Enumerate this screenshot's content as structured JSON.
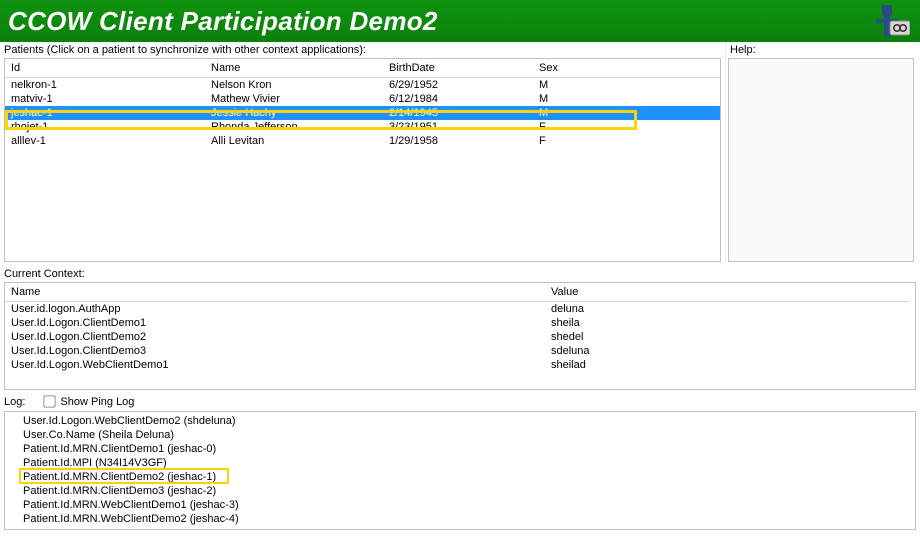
{
  "title": "CCOW Client Participation Demo2",
  "colors": {
    "header_bg": "#0d8a0d",
    "selection_bg": "#1e90ff",
    "highlight_border": "#ffd400"
  },
  "patients": {
    "label": "Patients (Click on a patient to synchronize with other context applications):",
    "columns": [
      "Id",
      "Name",
      "BirthDate",
      "Sex"
    ],
    "rows": [
      {
        "id": "nelkron-1",
        "name": "Nelson Kron",
        "birth": "6/29/1952",
        "sex": "M",
        "selected": false
      },
      {
        "id": "matviv-1",
        "name": "Mathew Vivier",
        "birth": "6/12/1984",
        "sex": "M",
        "selected": false
      },
      {
        "id": "jeshac-1",
        "name": "Jessie Hachy",
        "birth": "2/14/1945",
        "sex": "M",
        "selected": true
      },
      {
        "id": "rhojet-1",
        "name": "Rhonda Jefferson",
        "birth": "3/23/1951",
        "sex": "F",
        "selected": false
      },
      {
        "id": "alllev-1",
        "name": "Alli Levitan",
        "birth": "1/29/1958",
        "sex": "F",
        "selected": false
      }
    ]
  },
  "help": {
    "label": "Help:"
  },
  "context": {
    "label": "Current Context:",
    "columns": [
      "Name",
      "Value"
    ],
    "rows": [
      {
        "name": "User.id.logon.AuthApp",
        "value": "deluna"
      },
      {
        "name": "User.Id.Logon.ClientDemo1",
        "value": "sheila"
      },
      {
        "name": "User.Id.Logon.ClientDemo2",
        "value": "shedel"
      },
      {
        "name": "User.Id.Logon.ClientDemo3",
        "value": "sdeluna"
      },
      {
        "name": "User.Id.Logon.WebClientDemo1",
        "value": "sheilad"
      }
    ]
  },
  "log": {
    "label": "Log:",
    "show_ping_label": "Show Ping Log",
    "show_ping_checked": false,
    "lines": [
      "User.Id.Logon.WebClientDemo2 (shdeluna)",
      "User.Co.Name (Sheila Deluna)",
      "Patient.Id.MRN.ClientDemo1 (jeshac-0)",
      "Patient.Id.MPI (N34I14V3GF)",
      "Patient.Id.MRN.ClientDemo2 (jeshac-1)",
      "Patient.Id.MRN.ClientDemo3 (jeshac-2)",
      "Patient.Id.MRN.WebClientDemo1 (jeshac-3)",
      "Patient.Id.MRN.WebClientDemo2 (jeshac-4)"
    ],
    "highlighted_index": 4
  }
}
